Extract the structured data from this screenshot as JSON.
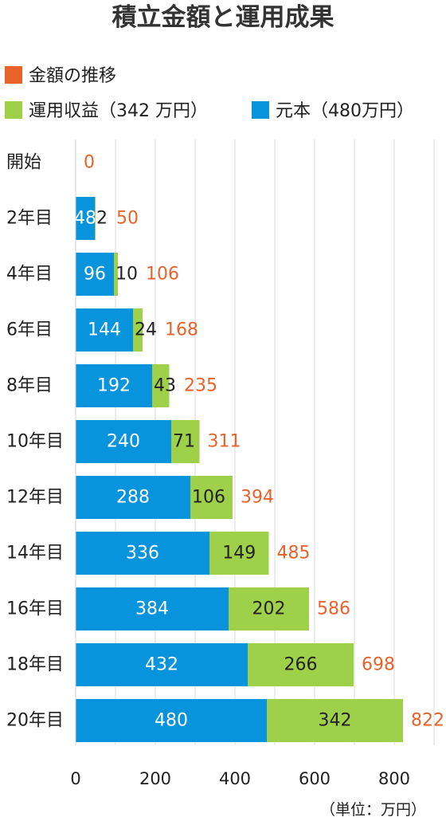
{
  "chart_data": {
    "type": "bar",
    "orientation": "horizontal",
    "stacked": true,
    "title": "積立金額と運用成果",
    "legend": [
      {
        "key": "total",
        "label": "金額の推移",
        "color": "#e8622a"
      },
      {
        "key": "profit",
        "label": "運用収益（342 万円）",
        "color": "#9fd04a"
      },
      {
        "key": "principal",
        "label": "元本（480万円）",
        "color": "#0894dc"
      }
    ],
    "legend_position": "top",
    "categories": [
      "開始",
      "2年目",
      "4年目",
      "6年目",
      "8年目",
      "10年目",
      "12年目",
      "14年目",
      "16年目",
      "18年目",
      "20年目"
    ],
    "series": [
      {
        "name": "元本（480万円）",
        "key": "principal",
        "color": "#0894dc",
        "values": [
          0,
          48,
          96,
          144,
          192,
          240,
          288,
          336,
          384,
          432,
          480
        ]
      },
      {
        "name": "運用収益（342 万円）",
        "key": "profit",
        "color": "#9fd04a",
        "values": [
          0,
          2,
          10,
          24,
          43,
          71,
          106,
          149,
          202,
          266,
          342
        ]
      }
    ],
    "totals": [
      0,
      50,
      106,
      168,
      235,
      311,
      394,
      485,
      586,
      698,
      822
    ],
    "total_color": "#e8622a",
    "xlim": [
      0,
      900
    ],
    "x_ticks": [
      0,
      200,
      400,
      600,
      800
    ],
    "x_gridlines_every": 100,
    "unit_label": "（単位：万円）",
    "grid": true
  }
}
